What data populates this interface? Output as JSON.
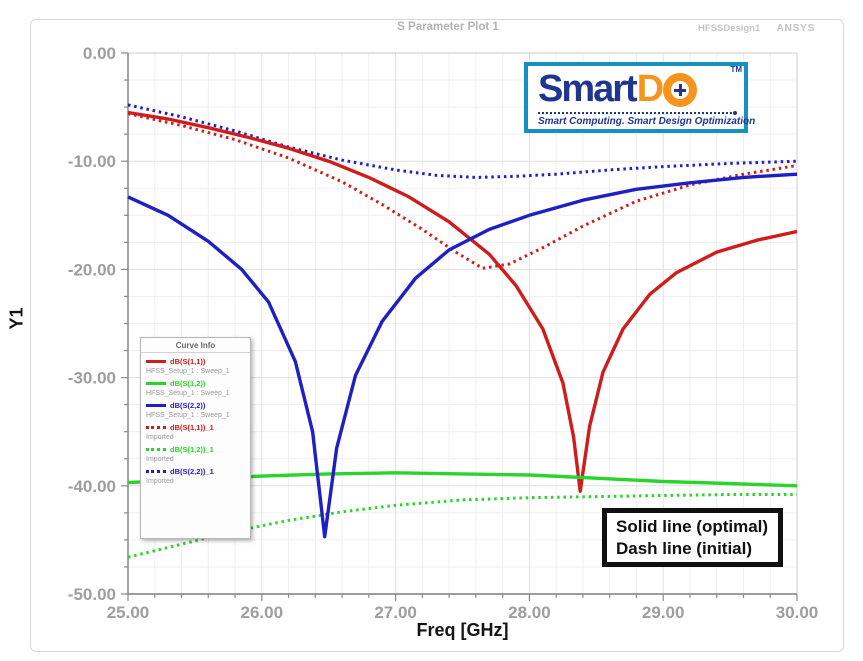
{
  "window": {
    "title": "S Parameter Plot 1",
    "design_label": "HFSSDesign1",
    "brand": "ANSYS"
  },
  "logo": {
    "text_smart": "Smart",
    "text_d": "D",
    "tm": "TM",
    "tagline": "Smart Computing. Smart Design Optimization",
    "border_color": "#1590c0",
    "navy": "#1e3690",
    "orange": "#f7941d"
  },
  "annotation": {
    "line1": "Solid line (optimal)",
    "line2": "Dash line (initial)"
  },
  "legend_header": "Curve Info",
  "chart_data": {
    "type": "line",
    "title": "S Parameter Plot 1",
    "xlabel": "Freq [GHz]",
    "ylabel": "Y1",
    "xlim": [
      25,
      30
    ],
    "ylim": [
      -50,
      0
    ],
    "grid": true,
    "legend_position": "middle-left",
    "x_ticks": [
      {
        "v": 25,
        "label": "25.00"
      },
      {
        "v": 26,
        "label": "26.00"
      },
      {
        "v": 27,
        "label": "27.00"
      },
      {
        "v": 28,
        "label": "28.00"
      },
      {
        "v": 29,
        "label": "29.00"
      },
      {
        "v": 30,
        "label": "30.00"
      }
    ],
    "y_ticks": [
      {
        "v": 0,
        "label": "0.00"
      },
      {
        "v": -10,
        "label": "-10.00"
      },
      {
        "v": -20,
        "label": "-20.00"
      },
      {
        "v": -30,
        "label": "-30.00"
      },
      {
        "v": -40,
        "label": "-40.00"
      },
      {
        "v": -50,
        "label": "-50.00"
      }
    ],
    "x_minor_step": 0.2,
    "y_minor_step": 2.5,
    "colors": {
      "red": "#cf1d1d",
      "green": "#2bd42b",
      "blue": "#1f1fc4"
    },
    "series": [
      {
        "name": "dB(S(1,1))",
        "source": "HFSS_Setup_1 : Sweep_1",
        "color": "#cf1d1d",
        "style": "solid",
        "points": [
          [
            25.0,
            -5.5
          ],
          [
            25.3,
            -6.1
          ],
          [
            25.6,
            -6.9
          ],
          [
            25.9,
            -7.8
          ],
          [
            26.2,
            -8.8
          ],
          [
            26.5,
            -10.0
          ],
          [
            26.8,
            -11.5
          ],
          [
            27.1,
            -13.3
          ],
          [
            27.4,
            -15.6
          ],
          [
            27.7,
            -18.6
          ],
          [
            27.9,
            -21.5
          ],
          [
            28.1,
            -25.5
          ],
          [
            28.25,
            -30.5
          ],
          [
            28.33,
            -35.5
          ],
          [
            28.38,
            -40.5
          ],
          [
            28.45,
            -34.5
          ],
          [
            28.55,
            -29.5
          ],
          [
            28.7,
            -25.5
          ],
          [
            28.9,
            -22.3
          ],
          [
            29.1,
            -20.3
          ],
          [
            29.4,
            -18.4
          ],
          [
            29.7,
            -17.3
          ],
          [
            30.0,
            -16.5
          ]
        ]
      },
      {
        "name": "dB(S(1,2))",
        "source": "HFSS_Setup_1 : Sweep_1",
        "color": "#2bd42b",
        "style": "solid",
        "points": [
          [
            25.0,
            -39.7
          ],
          [
            25.5,
            -39.4
          ],
          [
            26.0,
            -39.1
          ],
          [
            26.5,
            -38.9
          ],
          [
            27.0,
            -38.8
          ],
          [
            27.5,
            -38.9
          ],
          [
            28.0,
            -39.0
          ],
          [
            28.5,
            -39.3
          ],
          [
            29.0,
            -39.6
          ],
          [
            29.5,
            -39.8
          ],
          [
            30.0,
            -40.0
          ]
        ]
      },
      {
        "name": "dB(S(2,2))",
        "source": "HFSS_Setup_1 : Sweep_1",
        "color": "#1f1fc4",
        "style": "solid",
        "points": [
          [
            25.0,
            -13.3
          ],
          [
            25.3,
            -15.0
          ],
          [
            25.6,
            -17.4
          ],
          [
            25.85,
            -20.0
          ],
          [
            26.05,
            -23.0
          ],
          [
            26.25,
            -28.5
          ],
          [
            26.38,
            -35.0
          ],
          [
            26.47,
            -44.7
          ],
          [
            26.56,
            -36.5
          ],
          [
            26.7,
            -29.8
          ],
          [
            26.9,
            -24.8
          ],
          [
            27.15,
            -20.8
          ],
          [
            27.4,
            -18.2
          ],
          [
            27.7,
            -16.3
          ],
          [
            28.0,
            -15.0
          ],
          [
            28.4,
            -13.6
          ],
          [
            28.8,
            -12.6
          ],
          [
            29.2,
            -12.0
          ],
          [
            29.6,
            -11.5
          ],
          [
            30.0,
            -11.2
          ]
        ]
      },
      {
        "name": "dB(S(1,1))_1",
        "source": "Imported",
        "color": "#cf1d1d",
        "style": "dotted",
        "points": [
          [
            25.0,
            -5.6
          ],
          [
            25.4,
            -6.7
          ],
          [
            25.8,
            -8.0
          ],
          [
            26.2,
            -9.7
          ],
          [
            26.6,
            -11.9
          ],
          [
            26.9,
            -14.0
          ],
          [
            27.2,
            -16.3
          ],
          [
            27.45,
            -18.4
          ],
          [
            27.65,
            -19.9
          ],
          [
            27.85,
            -19.5
          ],
          [
            28.1,
            -18.0
          ],
          [
            28.4,
            -16.0
          ],
          [
            28.8,
            -13.7
          ],
          [
            29.2,
            -12.2
          ],
          [
            29.6,
            -11.2
          ],
          [
            30.0,
            -10.4
          ]
        ]
      },
      {
        "name": "dB(S(1,2))_1",
        "source": "Imported",
        "color": "#2bd42b",
        "style": "dotted",
        "points": [
          [
            25.0,
            -46.6
          ],
          [
            25.4,
            -45.4
          ],
          [
            25.8,
            -44.2
          ],
          [
            26.2,
            -43.2
          ],
          [
            26.6,
            -42.4
          ],
          [
            27.0,
            -41.8
          ],
          [
            27.5,
            -41.3
          ],
          [
            28.0,
            -41.1
          ],
          [
            28.5,
            -41.0
          ],
          [
            29.0,
            -40.9
          ],
          [
            29.5,
            -40.8
          ],
          [
            30.0,
            -40.8
          ]
        ]
      },
      {
        "name": "dB(S(2,2))_1",
        "source": "Imported",
        "color": "#1f1fc4",
        "style": "dotted",
        "points": [
          [
            25.0,
            -4.8
          ],
          [
            25.4,
            -5.9
          ],
          [
            25.8,
            -7.2
          ],
          [
            26.2,
            -8.7
          ],
          [
            26.6,
            -9.9
          ],
          [
            27.0,
            -10.8
          ],
          [
            27.3,
            -11.3
          ],
          [
            27.6,
            -11.5
          ],
          [
            27.9,
            -11.4
          ],
          [
            28.2,
            -11.2
          ],
          [
            28.6,
            -10.8
          ],
          [
            29.0,
            -10.5
          ],
          [
            29.5,
            -10.2
          ],
          [
            30.0,
            -10.0
          ]
        ]
      }
    ]
  }
}
